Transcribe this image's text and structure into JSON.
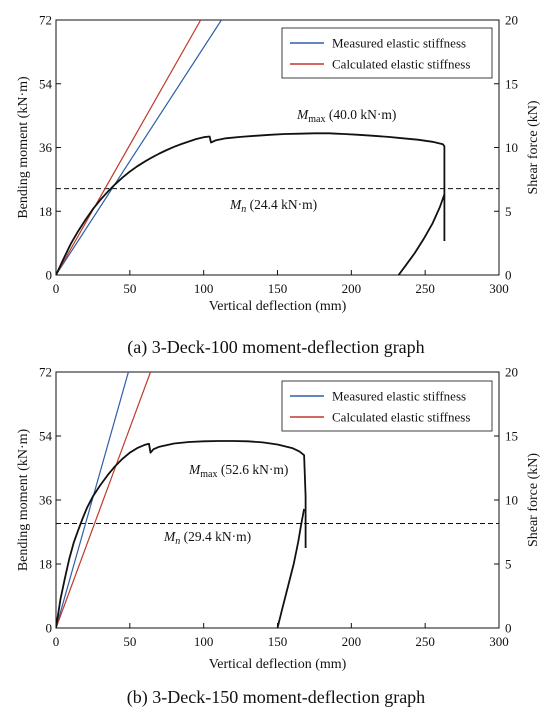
{
  "chart_data": [
    {
      "type": "line",
      "caption": "(a) 3-Deck-100 moment-deflection graph",
      "xlabel": "Vertical deflection (mm)",
      "ylabel": "Bending moment (kN·m)",
      "y2label": "Shear force (kN)",
      "xlim": [
        0,
        300
      ],
      "ylim": [
        0,
        72
      ],
      "y2lim": [
        0,
        20
      ],
      "xticks": [
        0,
        50,
        100,
        150,
        200,
        250,
        300
      ],
      "yticks": [
        0,
        18,
        36,
        54,
        72
      ],
      "y2ticks": [
        0,
        5,
        10,
        15,
        20
      ],
      "legend": {
        "position": "top-right"
      },
      "series": [
        {
          "name": "Measured elastic stiffness",
          "color": "#2f5fa7",
          "x": [
            0,
            112
          ],
          "y": [
            0,
            72
          ]
        },
        {
          "name": "Calculated elastic stiffness",
          "color": "#c0392b",
          "x": [
            0,
            98
          ],
          "y": [
            0,
            72
          ]
        },
        {
          "color": "#111111",
          "x": [
            0,
            5,
            10,
            15,
            20,
            25,
            30,
            35,
            40,
            45,
            50,
            55,
            60,
            65,
            70,
            75,
            80,
            85,
            90,
            95,
            100,
            104,
            105,
            108,
            115,
            125,
            135,
            145,
            155,
            165,
            175,
            185,
            190,
            195,
            205,
            215,
            225,
            235,
            245,
            255,
            262,
            263,
            263
          ],
          "y": [
            0,
            4.5,
            8.8,
            12.4,
            15.6,
            18.6,
            21.2,
            23.5,
            25.6,
            27.5,
            29.2,
            30.7,
            32.0,
            33.2,
            34.3,
            35.3,
            36.2,
            37.0,
            37.7,
            38.4,
            38.9,
            39.1,
            37.4,
            38.0,
            38.6,
            39.0,
            39.3,
            39.6,
            39.8,
            39.9,
            40.0,
            40.0,
            39.9,
            39.8,
            39.6,
            39.3,
            39.0,
            38.6,
            38.2,
            37.6,
            36.9,
            36.3,
            9.6
          ]
        },
        {
          "color": "#111111",
          "x": [
            232,
            237,
            243,
            249,
            255,
            260,
            263
          ],
          "y": [
            0,
            2.8,
            6.2,
            10.2,
            14.6,
            19.2,
            22.8
          ]
        }
      ],
      "reference_line": {
        "y": 24.4,
        "style": "dashed",
        "label_main": "M",
        "label_sub": "n",
        "label_rest": " (24.4 kN·m)"
      },
      "annotation": {
        "label_main": "M",
        "label_sub": "max",
        "label_rest": " (40.0 kN·m)"
      }
    },
    {
      "type": "line",
      "caption": "(b) 3-Deck-150 moment-deflection graph",
      "xlabel": "Vertical deflection (mm)",
      "ylabel": "Bending moment (kN·m)",
      "y2label": "Shear force (kN)",
      "xlim": [
        0,
        300
      ],
      "ylim": [
        0,
        72
      ],
      "y2lim": [
        0,
        20
      ],
      "xticks": [
        0,
        50,
        100,
        150,
        200,
        250,
        300
      ],
      "yticks": [
        0,
        18,
        36,
        54,
        72
      ],
      "y2ticks": [
        0,
        5,
        10,
        15,
        20
      ],
      "legend": {
        "position": "top-right"
      },
      "series": [
        {
          "name": "Measured elastic stiffness",
          "color": "#2f5fa7",
          "x": [
            0,
            49
          ],
          "y": [
            0,
            72
          ]
        },
        {
          "name": "Calculated elastic stiffness",
          "color": "#c0392b",
          "x": [
            0,
            64
          ],
          "y": [
            0,
            72
          ]
        },
        {
          "color": "#111111",
          "x": [
            0,
            3,
            6,
            9,
            12,
            15,
            18,
            21,
            25,
            30,
            35,
            40,
            45,
            50,
            55,
            60,
            63,
            64,
            66,
            70,
            80,
            90,
            100,
            110,
            120,
            130,
            140,
            150,
            160,
            165,
            168,
            169,
            169
          ],
          "y": [
            0,
            8.0,
            14.0,
            19.5,
            24.0,
            27.5,
            30.8,
            33.8,
            37.0,
            40.2,
            43.0,
            45.5,
            47.6,
            49.3,
            50.6,
            51.5,
            51.8,
            49.3,
            50.3,
            51.0,
            51.9,
            52.3,
            52.5,
            52.6,
            52.6,
            52.5,
            52.2,
            51.6,
            50.6,
            49.6,
            48.6,
            37.0,
            22.5
          ]
        },
        {
          "color": "#111111",
          "x": [
            150,
            153,
            157,
            161,
            164,
            166,
            168
          ],
          "y": [
            0,
            5.0,
            11.5,
            18.0,
            24.2,
            29.0,
            33.5
          ]
        }
      ],
      "reference_line": {
        "y": 29.4,
        "style": "dashed",
        "label_main": "M",
        "label_sub": "n",
        "label_rest": " (29.4 kN·m)"
      },
      "annotation": {
        "label_main": "M",
        "label_sub": "max",
        "label_rest": " (52.6 kN·m)"
      }
    }
  ]
}
